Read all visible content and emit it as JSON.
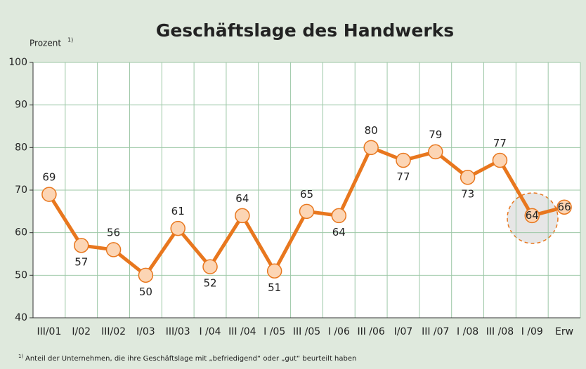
{
  "chart_data": {
    "type": "line",
    "title": "Geschäftslage des Handwerks",
    "y_label": "Prozent",
    "y_label_note": "1)",
    "categories": [
      "III/01",
      "I/02",
      "III/02",
      "I/03",
      "III/03",
      "I /04",
      "III /04",
      "I /05",
      "III /05",
      "I /06",
      "III /06",
      "I/07",
      "III /07",
      "I /08",
      "III /08",
      "I /09",
      "Erw"
    ],
    "series": [
      {
        "name": "Geschäftslage",
        "color": "#e8771e",
        "values": [
          69,
          57,
          56,
          50,
          61,
          52,
          64,
          51,
          65,
          64,
          80,
          77,
          79,
          73,
          77,
          64,
          66
        ]
      }
    ],
    "ylim": [
      40,
      100
    ],
    "yticks": [
      40,
      50,
      60,
      70,
      80,
      90,
      100
    ],
    "grid": true,
    "footnote_marker": "1)",
    "footnote": "Anteil der Unternehmen, die ihre Geschäftslage mit „befriedigend“ oder „gut“ beurteilt haben"
  }
}
